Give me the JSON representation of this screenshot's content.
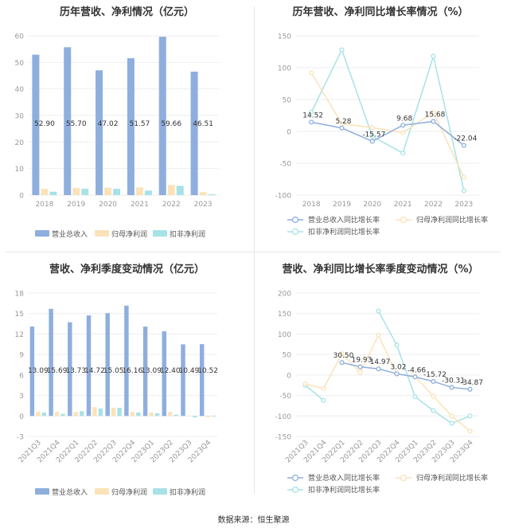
{
  "source_label": "数据来源：恒生聚源",
  "colors": {
    "revenue": "#8eaede",
    "net_profit": "#fbe2b8",
    "deducted_profit": "#a7e2e7",
    "axis_text": "#999999",
    "grid": "#eeeeee",
    "label": "#333333"
  },
  "chart_data": [
    {
      "id": "annual-values",
      "type": "bar",
      "title": "历年营收、净利情况（亿元）",
      "categories": [
        "2018",
        "2019",
        "2020",
        "2021",
        "2022",
        "2023"
      ],
      "ylim": [
        0,
        60
      ],
      "yticks": [
        0,
        10,
        20,
        30,
        40,
        50,
        60
      ],
      "grid": true,
      "legend_position": "bottom",
      "series": [
        {
          "name": "营业总收入",
          "values": [
            52.9,
            55.7,
            47.02,
            51.57,
            59.66,
            46.51
          ],
          "labels": [
            "52.90",
            "55.70",
            "47.02",
            "51.57",
            "59.66",
            "46.51"
          ]
        },
        {
          "name": "归母净利润",
          "values": [
            2.4,
            2.7,
            2.8,
            2.9,
            3.8,
            1.1
          ]
        },
        {
          "name": "扣非净利润",
          "values": [
            1.3,
            2.4,
            2.4,
            1.7,
            3.5,
            0.3
          ]
        }
      ]
    },
    {
      "id": "annual-growth",
      "type": "line",
      "title": "历年营收、净利同比增长率情况（%）",
      "categories": [
        "2018",
        "2019",
        "2020",
        "2021",
        "2022",
        "2023"
      ],
      "ylim": [
        -100,
        150
      ],
      "yticks": [
        -100,
        -50,
        0,
        50,
        100,
        150
      ],
      "grid": true,
      "legend_position": "bottom",
      "series": [
        {
          "name": "营业总收入同比增长率",
          "values": [
            14.52,
            5.28,
            -15.57,
            9.68,
            15.68,
            -22.04
          ],
          "labels": [
            "14.52",
            "5.28",
            "-15.57",
            "9.68",
            "15.68",
            "-22.04"
          ]
        },
        {
          "name": "归母净利润同比增长率",
          "values": [
            92,
            12,
            6,
            -2,
            30,
            -72
          ]
        },
        {
          "name": "扣非净利润同比增长率",
          "values": [
            30,
            128,
            -8,
            -34,
            118,
            -93
          ]
        }
      ]
    },
    {
      "id": "quarterly-values",
      "type": "bar",
      "title": "营收、净利季度变动情况（亿元）",
      "categories": [
        "2021Q3",
        "2021Q4",
        "2022Q1",
        "2022Q2",
        "2022Q3",
        "2022Q4",
        "2023Q1",
        "2023Q2",
        "2023Q3",
        "2023Q4"
      ],
      "ylim": [
        -3,
        18
      ],
      "yticks": [
        -3,
        0,
        3,
        6,
        9,
        12,
        15,
        18
      ],
      "grid": true,
      "legend_position": "bottom",
      "series": [
        {
          "name": "营业总收入",
          "values": [
            13.09,
            15.69,
            13.73,
            14.72,
            15.05,
            16.16,
            13.09,
            12.4,
            10.49,
            10.52
          ],
          "labels": [
            "13.09",
            "15.69",
            "13.73",
            "14.72",
            "15.05",
            "16.16",
            "13.09",
            "12.40",
            "10.49",
            "10.52"
          ]
        },
        {
          "name": "归母净利润",
          "values": [
            0.6,
            0.6,
            0.6,
            1.3,
            1.2,
            0.6,
            0.5,
            0.6,
            0.05,
            -0.2
          ]
        },
        {
          "name": "扣非净利润",
          "values": [
            0.5,
            0.3,
            0.7,
            1.1,
            1.2,
            0.5,
            0.4,
            0.2,
            -0.2,
            -0.1
          ]
        }
      ]
    },
    {
      "id": "quarterly-growth",
      "type": "line",
      "title": "营收、净利同比增长率季度变动情况（%）",
      "categories": [
        "2021Q3",
        "2021Q4",
        "2022Q1",
        "2022Q2",
        "2022Q3",
        "2022Q4",
        "2023Q1",
        "2023Q2",
        "2023Q3",
        "2023Q4"
      ],
      "ylim": [
        -150,
        200
      ],
      "yticks": [
        -150,
        -100,
        -50,
        0,
        50,
        100,
        150,
        200
      ],
      "grid": true,
      "legend_position": "bottom",
      "series": [
        {
          "name": "营业总收入同比增长率",
          "values": [
            null,
            null,
            30.5,
            19.93,
            14.97,
            3.02,
            -4.66,
            -15.72,
            -30.31,
            -34.87
          ],
          "labels": [
            "",
            "",
            "30.50",
            "19.93",
            "14.97",
            "3.02",
            "-4.66",
            "-15.72",
            "-30.31",
            "-34.87"
          ]
        },
        {
          "name": "归母净利润同比增长率",
          "values": [
            -22,
            -33,
            52,
            6,
            97,
            2,
            -3,
            -52,
            -100,
            -137
          ]
        },
        {
          "name": "扣非净利润同比增长率",
          "values": [
            -25,
            -62,
            null,
            null,
            156,
            73,
            -53,
            -87,
            -118,
            -100
          ]
        }
      ]
    }
  ]
}
